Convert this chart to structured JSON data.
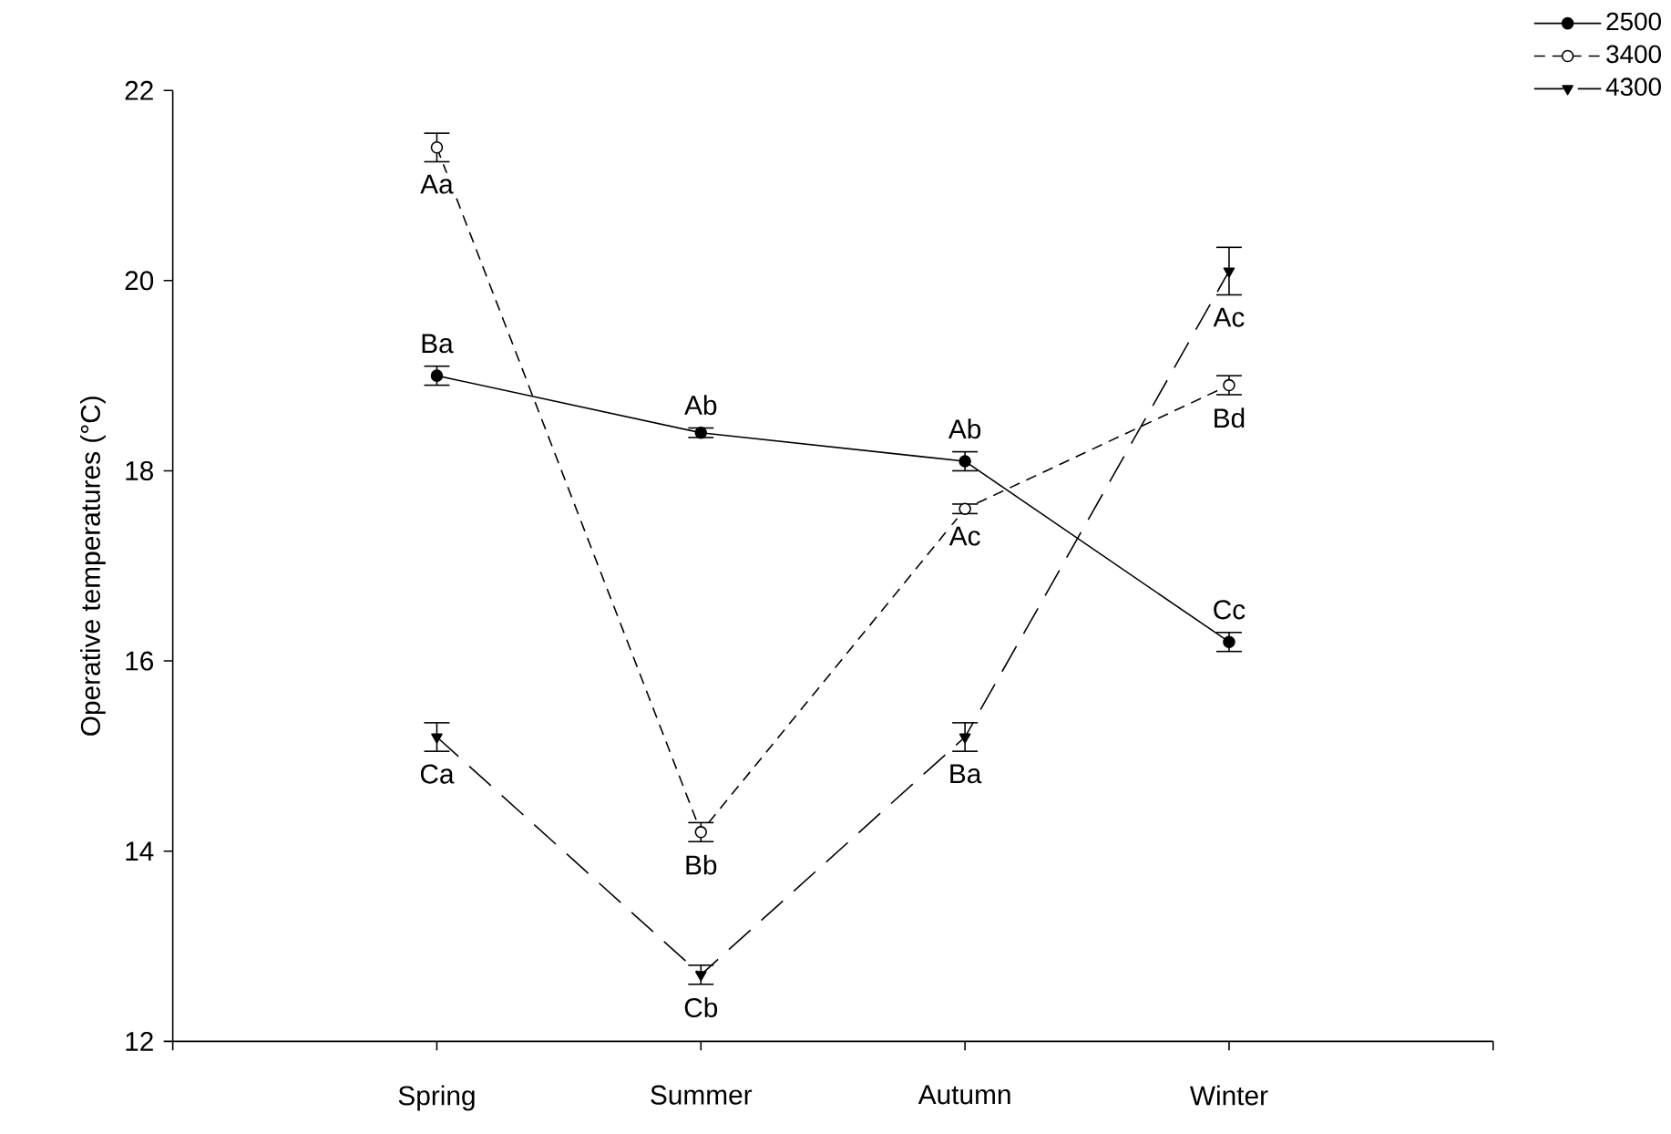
{
  "chart_data": {
    "type": "line",
    "ylabel": "Operative temperatures (°C)",
    "categories": [
      "Spring",
      "Summer",
      "Autumn",
      "Winter"
    ],
    "series": [
      {
        "name": "2500",
        "color": "#000000",
        "values": [
          19.0,
          18.4,
          18.1,
          16.2
        ],
        "errors": [
          0.1,
          0.05,
          0.1,
          0.1
        ],
        "value_labels": [
          "Ba",
          "Ab",
          "Ab",
          "Cc"
        ],
        "marker": "circle",
        "line_style": "solid"
      },
      {
        "name": "3400",
        "color": "#000000",
        "values": [
          21.4,
          14.2,
          17.6,
          18.9
        ],
        "errors": [
          0.15,
          0.1,
          0.05,
          0.1
        ],
        "value_labels": [
          "Aa",
          "Bb",
          "Ac",
          "Bd"
        ],
        "marker": "circle",
        "line_style": "dashed"
      },
      {
        "name": "4300",
        "color": "#000000",
        "values": [
          15.2,
          12.7,
          15.2,
          20.1
        ],
        "errors": [
          0.15,
          0.1,
          0.15,
          0.25
        ],
        "value_labels": [
          "Ca",
          "Cb",
          "Ba",
          "Ac"
        ],
        "marker": "triangle",
        "line_style": "dashed"
      }
    ],
    "ylim": [
      12,
      22
    ],
    "yticks": [
      12,
      14,
      16,
      18,
      20,
      22
    ],
    "grid": false,
    "legend": "top right"
  }
}
